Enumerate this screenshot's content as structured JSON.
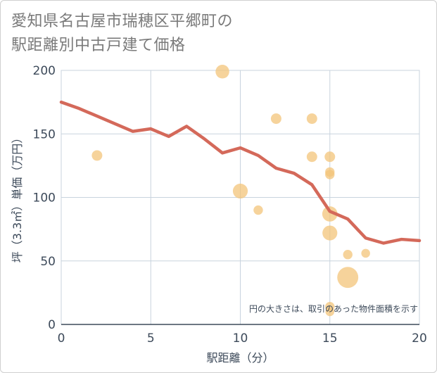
{
  "title": {
    "line1": "愛知県名古屋市瑞穂区平郷町の",
    "line2": "駅距離別中古戸建て価格"
  },
  "chart_data": {
    "type": "scatter+line",
    "xlabel": "駅距離（分）",
    "ylabel": "坪（3.3㎡）単価（万円）",
    "xlim": [
      0,
      20
    ],
    "ylim": [
      0,
      200
    ],
    "x_ticks": [
      "0",
      "5",
      "10",
      "15",
      "20"
    ],
    "y_ticks": [
      "0",
      "50",
      "100",
      "150",
      "200"
    ],
    "grid": true,
    "note": "円の大きさは、取引のあった物件面積を示す",
    "colors": {
      "bubble": "#f3c47a",
      "line": "#d4695a",
      "grid": "#c8d3de",
      "axis": "#3d4a5a"
    },
    "bubbles": [
      {
        "x": 2,
        "y": 133,
        "size": 1.0
      },
      {
        "x": 9,
        "y": 199,
        "size": 1.7
      },
      {
        "x": 10,
        "y": 105,
        "size": 2.0
      },
      {
        "x": 11,
        "y": 90,
        "size": 0.8
      },
      {
        "x": 12,
        "y": 162,
        "size": 1.0
      },
      {
        "x": 14,
        "y": 162,
        "size": 1.0
      },
      {
        "x": 14,
        "y": 132,
        "size": 1.0
      },
      {
        "x": 15,
        "y": 132,
        "size": 1.0
      },
      {
        "x": 15,
        "y": 120,
        "size": 0.8
      },
      {
        "x": 15,
        "y": 118,
        "size": 0.8
      },
      {
        "x": 15,
        "y": 87,
        "size": 2.1
      },
      {
        "x": 15,
        "y": 72,
        "size": 2.0
      },
      {
        "x": 15,
        "y": 14,
        "size": 0.8
      },
      {
        "x": 15,
        "y": 10,
        "size": 0.7
      },
      {
        "x": 16,
        "y": 55,
        "size": 0.8
      },
      {
        "x": 16,
        "y": 37,
        "size": 4.0
      },
      {
        "x": 17,
        "y": 56,
        "size": 0.7
      }
    ],
    "trend": {
      "x": [
        0,
        1,
        2,
        3,
        4,
        5,
        6,
        7,
        8,
        9,
        10,
        11,
        12,
        13,
        14,
        15,
        16,
        17,
        18,
        19,
        20
      ],
      "y": [
        175,
        170,
        164,
        158,
        152,
        154,
        148,
        156,
        146,
        135,
        139,
        133,
        123,
        119,
        110,
        89,
        83,
        68,
        64,
        67,
        66
      ]
    }
  }
}
